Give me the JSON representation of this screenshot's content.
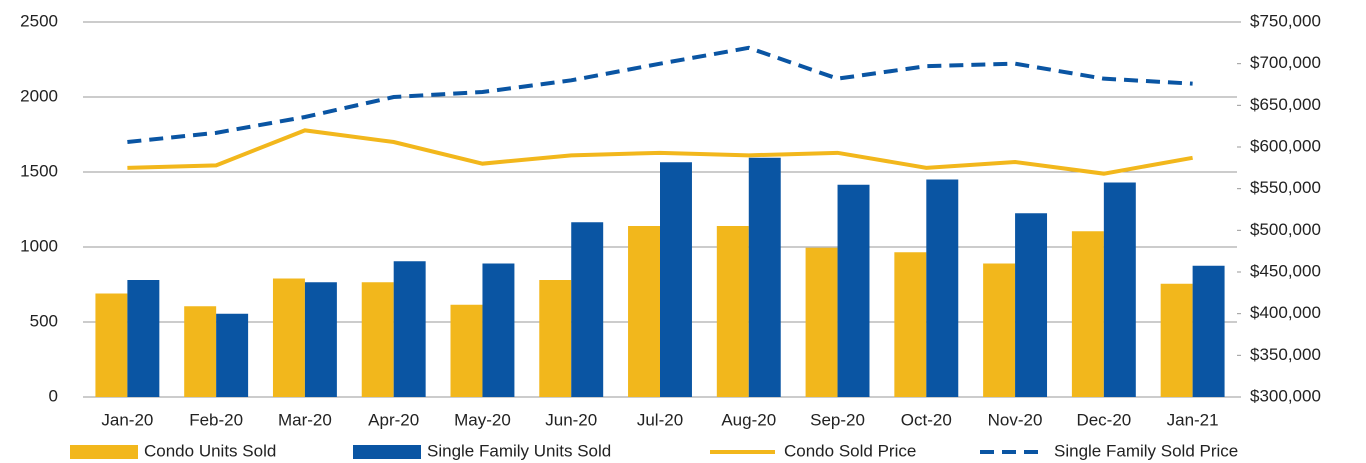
{
  "chart_data": {
    "type": "bar-line",
    "categories": [
      "Jan-20",
      "Feb-20",
      "Mar-20",
      "Apr-20",
      "May-20",
      "Jun-20",
      "Jul-20",
      "Aug-20",
      "Sep-20",
      "Oct-20",
      "Nov-20",
      "Dec-20",
      "Jan-21"
    ],
    "series": [
      {
        "name": "Condo Units Sold",
        "kind": "bar",
        "color": "#f2b71c",
        "values": [
          690,
          605,
          790,
          765,
          615,
          780,
          1140,
          1140,
          995,
          965,
          890,
          1105,
          755
        ]
      },
      {
        "name": "Single Family Units Sold",
        "kind": "bar",
        "color": "#0a55a3",
        "values": [
          780,
          555,
          765,
          905,
          890,
          1165,
          1565,
          1595,
          1415,
          1450,
          1225,
          1430,
          875
        ]
      },
      {
        "name": "Condo Sold Price",
        "kind": "line",
        "axis": "y2",
        "color": "#f2b71c",
        "dash": false,
        "values": [
          575000,
          578000,
          620000,
          606000,
          580000,
          590000,
          593000,
          590000,
          593000,
          575000,
          582000,
          568000,
          587000
        ]
      },
      {
        "name": "Single Family Sold Price",
        "kind": "line",
        "axis": "y2",
        "color": "#0a55a3",
        "dash": true,
        "values": [
          606000,
          617000,
          636000,
          660000,
          666000,
          680000,
          700000,
          719000,
          682000,
          697000,
          700000,
          682000,
          676000
        ]
      }
    ],
    "ylim": [
      0,
      2500
    ],
    "yticks": [
      0,
      500,
      1000,
      1500,
      2000,
      2500
    ],
    "y2lim": [
      300000,
      750000
    ],
    "y2ticks": [
      {
        "value": 300000,
        "label": "$300,000"
      },
      {
        "value": 350000,
        "label": "$350,000"
      },
      {
        "value": 400000,
        "label": "$400,000"
      },
      {
        "value": 450000,
        "label": "$450,000"
      },
      {
        "value": 500000,
        "label": "$500,000"
      },
      {
        "value": 550000,
        "label": "$550,000"
      },
      {
        "value": 600000,
        "label": "$600,000"
      },
      {
        "value": 650000,
        "label": "$650,000"
      },
      {
        "value": 700000,
        "label": "$700,000"
      },
      {
        "value": 750000,
        "label": "$750,000"
      }
    ],
    "grid": true,
    "legend": "bottom"
  }
}
